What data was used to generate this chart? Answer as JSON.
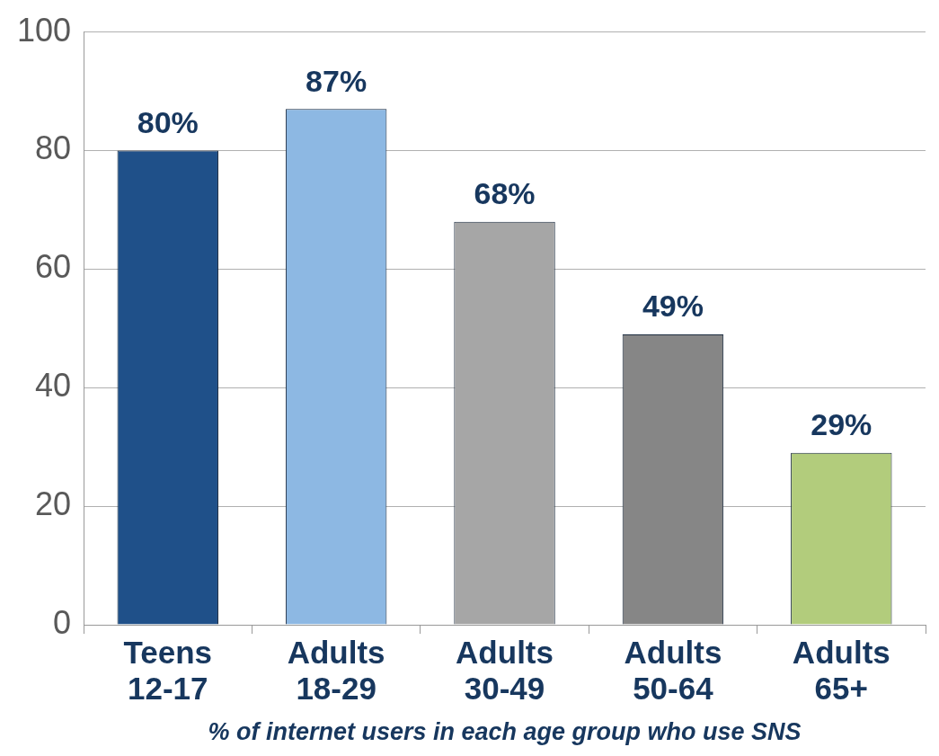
{
  "chart_data": {
    "type": "bar",
    "xlabel": "% of internet users in each age group who use SNS",
    "categories": [
      "Teens 12-17",
      "Adults 18-29",
      "Adults 30-49",
      "Adults 50-64",
      "Adults 65+"
    ],
    "values": [
      80,
      87,
      68,
      49,
      29
    ],
    "colors": [
      "#1f5089",
      "#8db8e3",
      "#a6a6a6",
      "#868686",
      "#b2cc7c"
    ],
    "value_labels": [
      "80%",
      "87%",
      "68%",
      "49%",
      "29%"
    ],
    "ylim": [
      0,
      100
    ],
    "yticks": [
      0,
      20,
      40,
      60,
      80,
      100
    ],
    "grid": "y",
    "legend": false
  }
}
